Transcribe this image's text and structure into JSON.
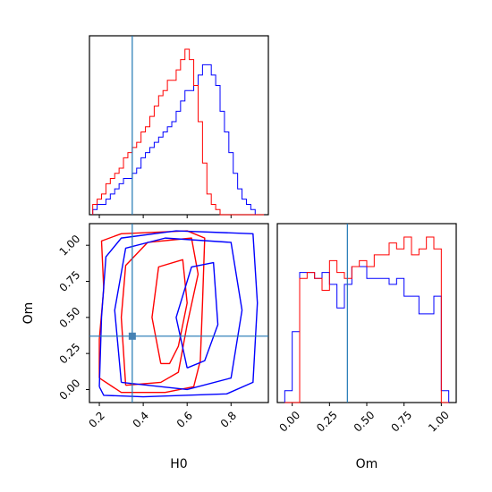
{
  "chart_data": [
    {
      "panel": "H0 marginal",
      "type": "histogram",
      "x_ticks": [
        "0.2",
        "0.4",
        "0.6",
        "0.8"
      ],
      "xlim": [
        0.155,
        0.97
      ],
      "truth_line_x": 0.35,
      "bin_edges": [
        0.17,
        0.19,
        0.21,
        0.23,
        0.25,
        0.27,
        0.29,
        0.31,
        0.33,
        0.35,
        0.37,
        0.39,
        0.41,
        0.43,
        0.45,
        0.47,
        0.49,
        0.51,
        0.53,
        0.55,
        0.57,
        0.59,
        0.61,
        0.63,
        0.65,
        0.67,
        0.69,
        0.71,
        0.73,
        0.75,
        0.77,
        0.79,
        0.81,
        0.83,
        0.85,
        0.87,
        0.89,
        0.91,
        0.93,
        0.95
      ],
      "series": [
        {
          "color": "#0000ff",
          "counts": [
            1,
            2,
            2,
            3,
            4,
            5,
            6,
            7,
            7,
            8,
            9,
            11,
            12,
            13,
            14,
            15,
            16,
            17,
            18,
            20,
            22,
            24,
            24,
            25,
            27,
            29,
            29,
            27,
            25,
            20,
            16,
            12,
            8,
            5,
            3,
            2,
            1,
            0,
            0
          ]
        },
        {
          "color": "#ff0000",
          "counts": [
            2,
            3,
            4,
            6,
            7,
            8,
            9,
            11,
            12,
            13,
            14,
            16,
            17,
            19,
            21,
            23,
            24,
            26,
            26,
            28,
            30,
            32,
            30,
            25,
            18,
            10,
            4,
            2,
            1,
            0,
            0,
            0,
            0,
            0,
            0,
            0,
            0,
            0,
            0
          ]
        }
      ]
    },
    {
      "panel": "H0 vs Om joint",
      "type": "contour",
      "x_ticks": [
        "0.2",
        "0.4",
        "0.6",
        "0.8"
      ],
      "y_ticks": [
        "0.00",
        "0.25",
        "0.50",
        "0.75",
        "1.00"
      ],
      "xlabel": "H0",
      "ylabel": "Om",
      "xlim": [
        0.155,
        0.97
      ],
      "ylim": [
        -0.09,
        1.15
      ],
      "truth_point": [
        0.35,
        0.37
      ],
      "series": [
        {
          "color": "#ff0000",
          "contours": [
            [
              [
                0.2,
                0.08
              ],
              [
                0.2,
                0.35
              ],
              [
                0.22,
                0.7
              ],
              [
                0.21,
                1.03
              ],
              [
                0.3,
                1.08
              ],
              [
                0.6,
                1.1
              ],
              [
                0.68,
                1.05
              ],
              [
                0.67,
                0.6
              ],
              [
                0.66,
                0.2
              ],
              [
                0.63,
                0.02
              ],
              [
                0.5,
                -0.02
              ],
              [
                0.3,
                -0.02
              ],
              [
                0.2,
                0.08
              ]
            ],
            [
              [
                0.32,
                0.03
              ],
              [
                0.3,
                0.5
              ],
              [
                0.32,
                0.86
              ],
              [
                0.42,
                1.02
              ],
              [
                0.62,
                1.05
              ],
              [
                0.65,
                0.8
              ],
              [
                0.6,
                0.45
              ],
              [
                0.56,
                0.12
              ],
              [
                0.48,
                0.05
              ],
              [
                0.32,
                0.03
              ]
            ],
            [
              [
                0.48,
                0.18
              ],
              [
                0.44,
                0.5
              ],
              [
                0.47,
                0.85
              ],
              [
                0.58,
                0.9
              ],
              [
                0.6,
                0.6
              ],
              [
                0.56,
                0.3
              ],
              [
                0.52,
                0.18
              ],
              [
                0.48,
                0.18
              ]
            ]
          ]
        },
        {
          "color": "#0000ff",
          "contours": [
            [
              [
                0.2,
                0.02
              ],
              [
                0.21,
                0.5
              ],
              [
                0.23,
                0.92
              ],
              [
                0.3,
                1.05
              ],
              [
                0.55,
                1.1
              ],
              [
                0.9,
                1.08
              ],
              [
                0.92,
                0.6
              ],
              [
                0.9,
                0.05
              ],
              [
                0.78,
                -0.03
              ],
              [
                0.4,
                -0.05
              ],
              [
                0.22,
                -0.04
              ],
              [
                0.2,
                0.02
              ]
            ],
            [
              [
                0.3,
                0.05
              ],
              [
                0.27,
                0.55
              ],
              [
                0.32,
                0.98
              ],
              [
                0.5,
                1.05
              ],
              [
                0.8,
                1.02
              ],
              [
                0.85,
                0.55
              ],
              [
                0.8,
                0.08
              ],
              [
                0.6,
                0.0
              ],
              [
                0.3,
                0.05
              ]
            ],
            [
              [
                0.6,
                0.15
              ],
              [
                0.55,
                0.5
              ],
              [
                0.62,
                0.85
              ],
              [
                0.72,
                0.88
              ],
              [
                0.74,
                0.45
              ],
              [
                0.68,
                0.2
              ],
              [
                0.6,
                0.15
              ]
            ]
          ]
        }
      ]
    },
    {
      "panel": "Om marginal",
      "type": "histogram",
      "x_ticks": [
        "0.00",
        "0.25",
        "0.50",
        "0.75",
        "1.00"
      ],
      "xlim": [
        -0.1,
        1.1
      ],
      "xlabel": "Om",
      "truth_line_x": 0.37,
      "bin_edges": [
        -0.05,
        0.0,
        0.05,
        0.1,
        0.15,
        0.2,
        0.25,
        0.3,
        0.35,
        0.4,
        0.45,
        0.5,
        0.55,
        0.6,
        0.65,
        0.7,
        0.75,
        0.8,
        0.85,
        0.9,
        0.95,
        1.0,
        1.05
      ],
      "series": [
        {
          "color": "#0000ff",
          "counts": [
            2,
            12,
            22,
            22,
            21,
            22,
            20,
            16,
            20,
            23,
            23,
            21,
            21,
            21,
            20,
            21,
            18,
            18,
            15,
            15,
            18,
            2
          ]
        },
        {
          "color": "#ff0000",
          "counts": [
            0,
            0,
            21,
            22,
            21,
            19,
            24,
            22,
            21,
            23,
            24,
            23,
            25,
            25,
            27,
            26,
            28,
            25,
            26,
            28,
            26,
            0
          ]
        }
      ]
    }
  ]
}
